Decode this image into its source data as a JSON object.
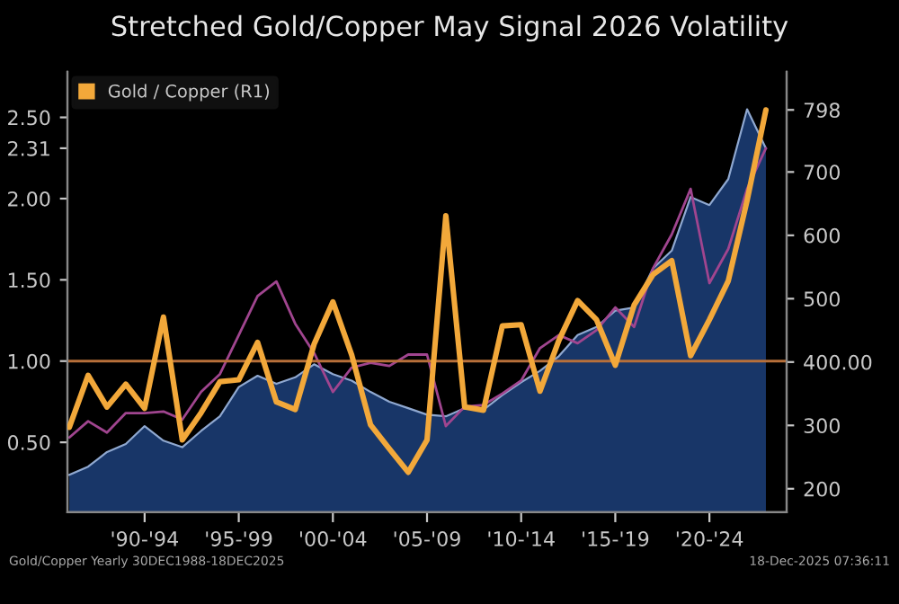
{
  "chart_data": {
    "type": "line",
    "title": "Stretched Gold/Copper May Signal 2026 Volatility",
    "categories": [
      null,
      null,
      null,
      null,
      "'90-'94",
      null,
      null,
      null,
      null,
      "'95-'99",
      null,
      null,
      null,
      null,
      "'00-'04",
      null,
      null,
      null,
      null,
      "'05-'09",
      null,
      null,
      null,
      null,
      "'10-'14",
      null,
      null,
      null,
      null,
      "'15-'19",
      null,
      null,
      null,
      null,
      "'20-'24",
      null,
      null,
      null
    ],
    "series": [
      {
        "type": "area",
        "color": "#1c3f7a",
        "axis": "y",
        "values": [
          0.3,
          0.35,
          0.44,
          0.49,
          0.6,
          0.51,
          0.47,
          0.57,
          0.66,
          0.84,
          0.91,
          0.86,
          0.9,
          0.98,
          0.92,
          0.88,
          0.81,
          0.75,
          0.71,
          0.67,
          0.66,
          0.71,
          0.7,
          0.79,
          0.87,
          0.94,
          1.03,
          1.16,
          1.21,
          1.31,
          1.33,
          1.57,
          1.68,
          2.01,
          1.96,
          2.12,
          2.55,
          2.31
        ]
      },
      {
        "color": "#a0458f",
        "axis": "y",
        "values": [
          0.53,
          0.63,
          0.56,
          0.68,
          0.68,
          0.69,
          0.64,
          0.81,
          0.92,
          1.16,
          1.4,
          1.49,
          1.23,
          1.05,
          0.81,
          0.96,
          0.99,
          0.97,
          1.04,
          1.04,
          0.6,
          0.72,
          0.73,
          0.8,
          0.88,
          1.08,
          1.16,
          1.11,
          1.19,
          1.33,
          1.21,
          1.57,
          1.78,
          2.06,
          1.48,
          1.69,
          2.06,
          2.31
        ]
      },
      {
        "type": "line",
        "name": "Gold / Copper (R1)",
        "color": "#f2a83a",
        "axis": "y2",
        "values": [
          297,
          379,
          329,
          365,
          327,
          471,
          277,
          320,
          369,
          372,
          431,
          337,
          325,
          428,
          495,
          411,
          301,
          263,
          226,
          277,
          631,
          329,
          324,
          457,
          459,
          354,
          434,
          497,
          467,
          395,
          490,
          538,
          560,
          410,
          467,
          528,
          655,
          798
        ]
      }
    ],
    "ylim": [
      0.07,
      2.78
    ],
    "yticks": [
      {
        "value": 0.5,
        "label": "0.50"
      },
      {
        "value": 1.0,
        "label": "1.00"
      },
      {
        "value": 1.5,
        "label": "1.50"
      },
      {
        "value": 2.0,
        "label": "2.00"
      },
      {
        "value": 2.31,
        "label": "2.31"
      },
      {
        "value": 2.5,
        "label": "2.50"
      }
    ],
    "y2lim": [
      163,
      858
    ],
    "y2ticks": [
      200,
      300,
      {
        "value": 400,
        "label": "400.00"
      },
      500,
      600,
      700,
      798
    ],
    "ref_lines": [
      {
        "axis": "y",
        "value": 1.0,
        "color": "#b8703a"
      }
    ],
    "annotations": [
      "Gold/Copper Yearly 30DEC1988-18DEC2025",
      "18-Dec-2025 07:36:11"
    ],
    "legend": "top left",
    "grid": false,
    "line_style": "solid"
  }
}
